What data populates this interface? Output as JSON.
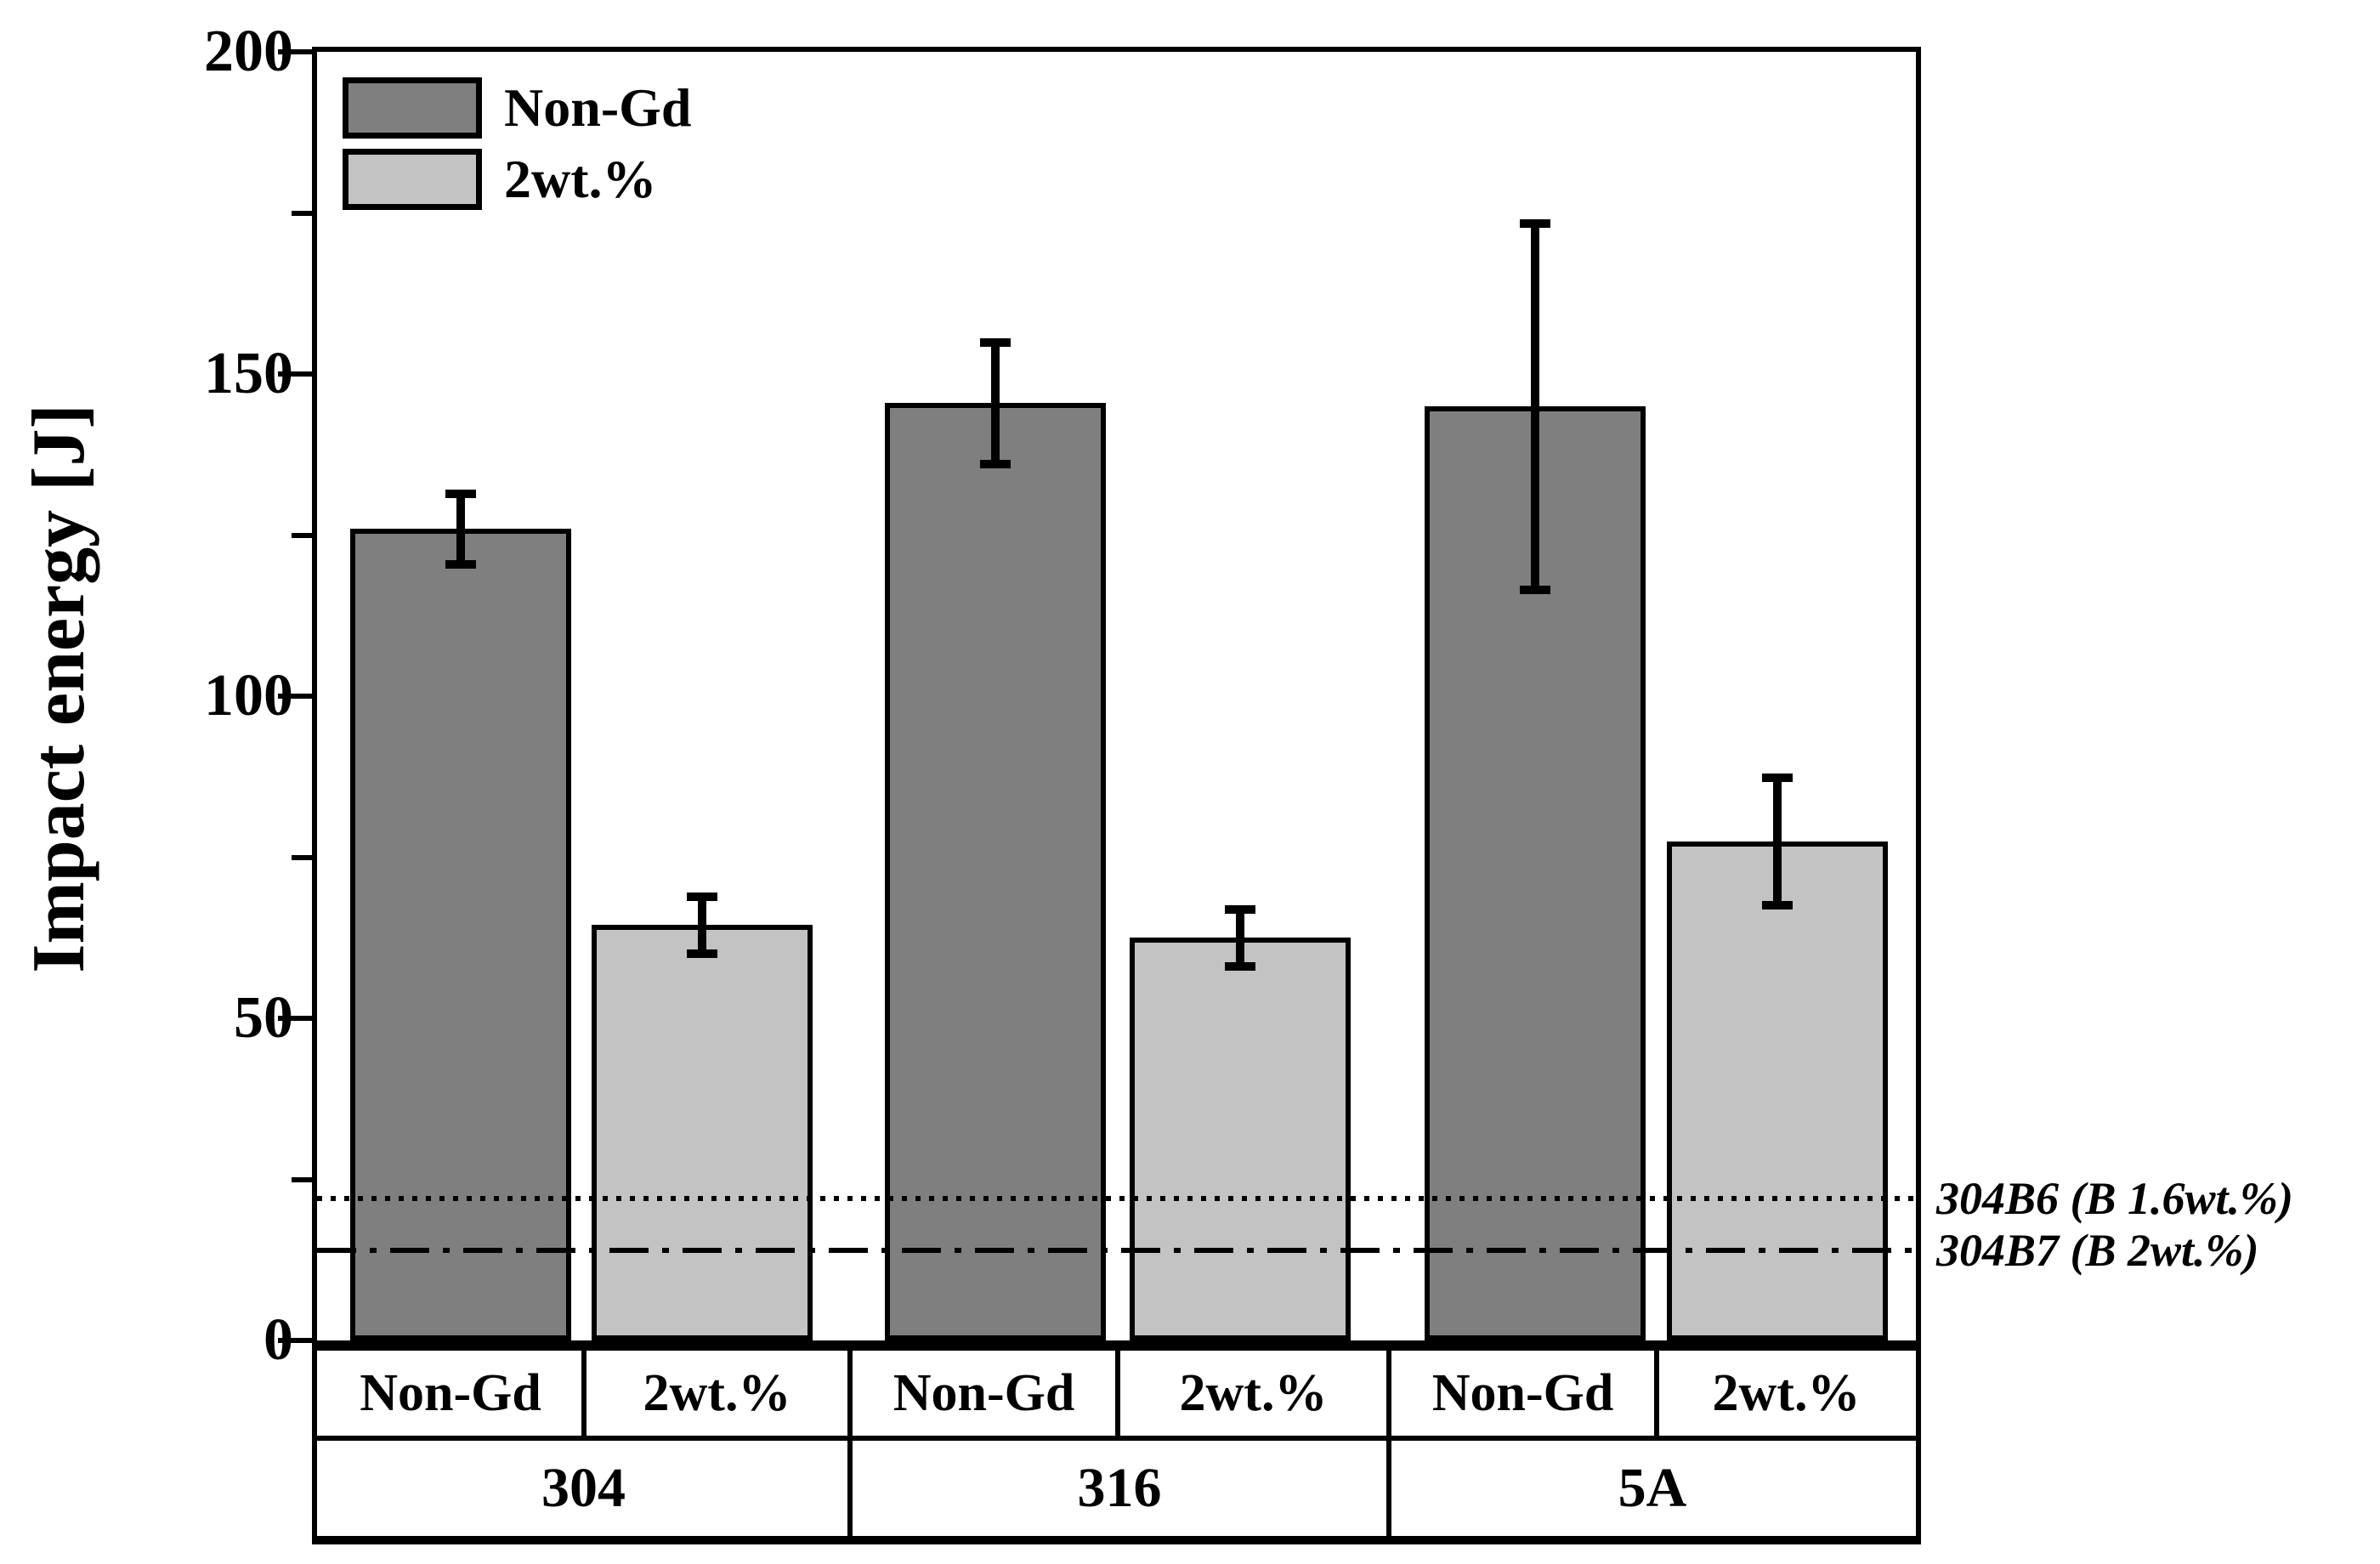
{
  "chart_data": {
    "type": "bar",
    "title": "",
    "ylabel": "Impact energy [J]",
    "xlabel": "",
    "ylim": [
      0,
      200
    ],
    "ytick_major": [
      0,
      50,
      100,
      150,
      200
    ],
    "ytick_minor": [
      25,
      75,
      125,
      175
    ],
    "grid": "off",
    "legend_position": "top-left",
    "categories": [
      "304",
      "316",
      "5A"
    ],
    "series": [
      {
        "name": "Non-Gd",
        "color": "#7f7f7f",
        "values": [
          126,
          145.5,
          145
        ],
        "errors": [
          5.5,
          9.5,
          28.5
        ]
      },
      {
        "name": "2wt.%",
        "color": "#c3c3c3",
        "values": [
          64.5,
          62.5,
          77.5
        ],
        "errors": [
          4.5,
          4.5,
          10
        ]
      }
    ],
    "bar_tick_labels": [
      "Non-Gd",
      "2wt.%",
      "Non-Gd",
      "2wt.%",
      "Non-Gd",
      "2wt.%"
    ],
    "legend": [
      {
        "label": "Non-Gd",
        "color": "#7f7f7f"
      },
      {
        "label": "2wt.%",
        "color": "#c3c3c3"
      }
    ],
    "reference_lines": [
      {
        "label": "304B6 (B 1.6wt.%)",
        "value": 22,
        "style": "dotted"
      },
      {
        "label": "304B7 (B 2wt.%)",
        "value": 14,
        "style": "dashdot"
      }
    ],
    "axis_color": "#000000",
    "background_color": "#ffffff"
  }
}
